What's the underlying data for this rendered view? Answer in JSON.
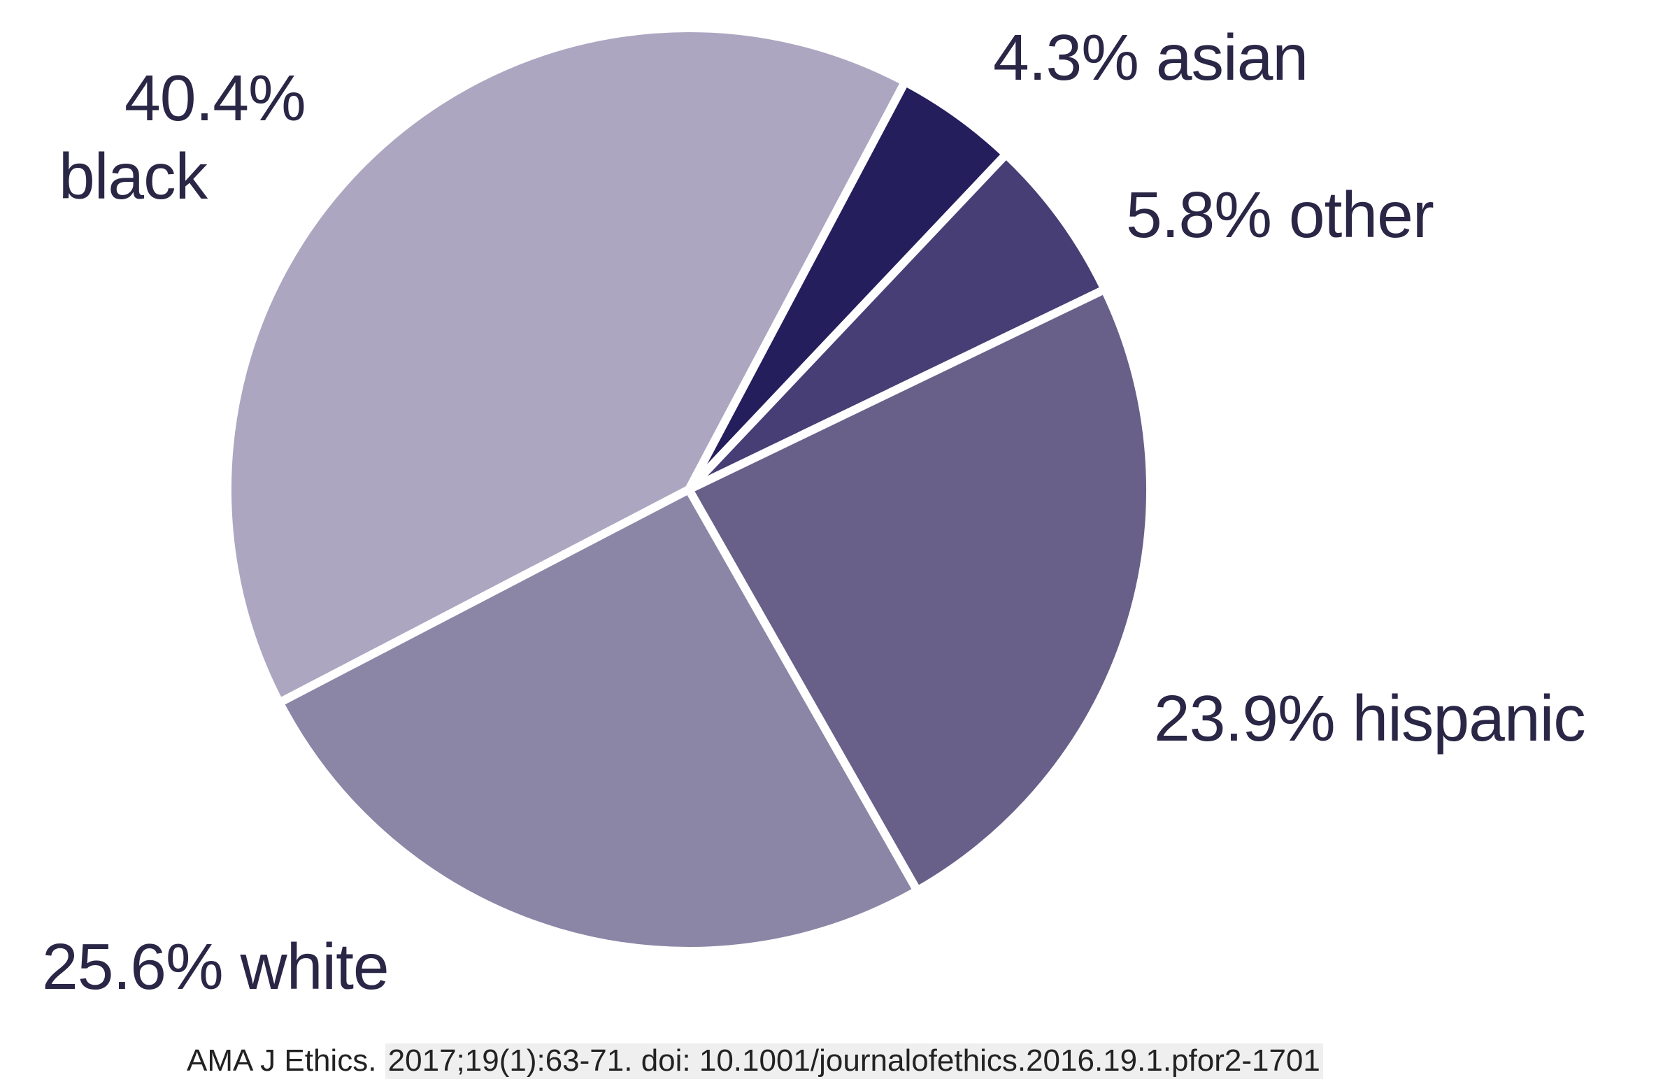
{
  "chart_data": {
    "type": "pie",
    "slices": [
      {
        "label": "40.4%",
        "sublabel": "black",
        "value": 40.4,
        "color": "#aca6c1"
      },
      {
        "label": "4.3% asian",
        "value": 4.3,
        "color": "#251e5d"
      },
      {
        "label": "5.8% other",
        "value": 5.8,
        "color": "#463e75"
      },
      {
        "label": "23.9% hispanic",
        "value": 23.9,
        "color": "#686089"
      },
      {
        "label": "25.6% white",
        "value": 25.6,
        "color": "#8b85a6"
      }
    ]
  },
  "citation": {
    "journal": "AMA J Ethics.",
    "reference": "2017;19(1):63-71. doi: 10.1001/journalofethics.2016.19.1.pfor2-1701"
  }
}
